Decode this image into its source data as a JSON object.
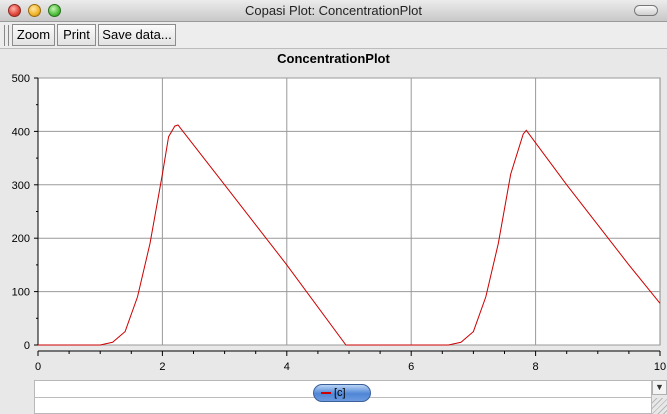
{
  "window": {
    "title": "Copasi Plot: ConcentrationPlot"
  },
  "toolbar": {
    "zoom_label": "Zoom",
    "print_label": "Print",
    "save_label": "Save data..."
  },
  "plot": {
    "title": "ConcentrationPlot",
    "legend_label": "[c]"
  },
  "chart_data": {
    "type": "line",
    "title": "ConcentrationPlot",
    "xlabel": "",
    "ylabel": "",
    "xlim": [
      0,
      10
    ],
    "ylim": [
      0,
      500
    ],
    "x_ticks": [
      "0",
      "2",
      "4",
      "6",
      "8",
      "10"
    ],
    "y_ticks": [
      "0",
      "100",
      "200",
      "300",
      "400",
      "500"
    ],
    "grid": true,
    "legend_position": "bottom",
    "series": [
      {
        "name": "[c]",
        "color": "#cc0000",
        "x": [
          0,
          1.0,
          1.2,
          1.4,
          1.6,
          1.8,
          2.0,
          2.1,
          2.2,
          2.25,
          3.0,
          4.0,
          4.95,
          6.6,
          6.8,
          7.0,
          7.2,
          7.4,
          7.6,
          7.8,
          7.85,
          8.5,
          9.5,
          10.0
        ],
        "values": [
          0,
          0,
          5,
          25,
          90,
          190,
          320,
          390,
          410,
          412,
          300,
          150,
          0,
          0,
          5,
          25,
          90,
          190,
          320,
          395,
          402,
          300,
          150,
          78
        ]
      }
    ]
  }
}
